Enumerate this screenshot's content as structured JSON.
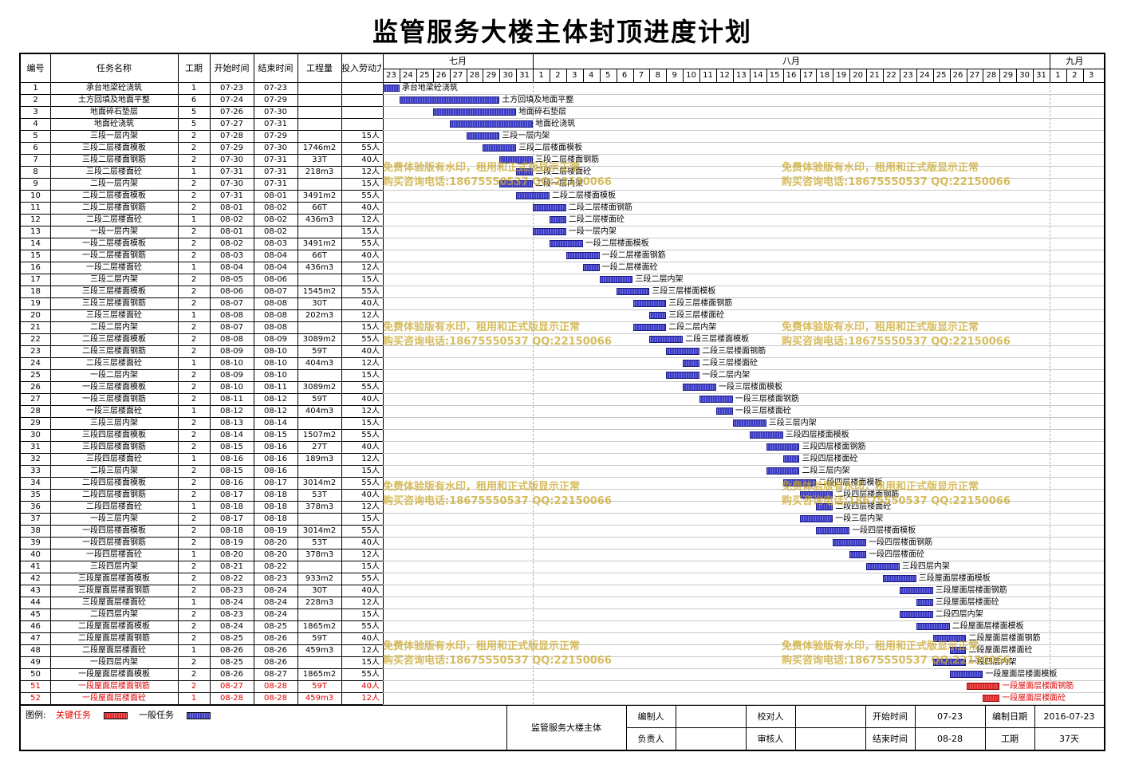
{
  "title": "监管服务大楼主体封顶进度计划",
  "headers": {
    "no": "编号",
    "name": "任务名称",
    "duration": "工期",
    "start": "开始时间",
    "end": "结束时间",
    "quantity": "工程量",
    "labor": "投入劳动力"
  },
  "months": [
    {
      "label": "七月",
      "days": [
        "23",
        "24",
        "25",
        "26",
        "27",
        "28",
        "29",
        "30",
        "31"
      ]
    },
    {
      "label": "八月",
      "days": [
        "1",
        "2",
        "3",
        "4",
        "5",
        "6",
        "7",
        "8",
        "9",
        "10",
        "11",
        "12",
        "13",
        "14",
        "15",
        "16",
        "17",
        "18",
        "19",
        "20",
        "21",
        "22",
        "23",
        "24",
        "25",
        "26",
        "27",
        "28",
        "29",
        "30",
        "31"
      ]
    },
    {
      "label": "九月",
      "days": [
        "1",
        "2",
        "3"
      ]
    }
  ],
  "tasks": [
    {
      "no": "1",
      "name": "承台地梁砼浇筑",
      "dur": "1",
      "start": "07-23",
      "end": "07-23",
      "qty": "",
      "labor": "",
      "critical": false
    },
    {
      "no": "2",
      "name": "土方回填及地面平整",
      "dur": "6",
      "start": "07-24",
      "end": "07-29",
      "qty": "",
      "labor": "",
      "critical": false
    },
    {
      "no": "3",
      "name": "地面碎石垫层",
      "dur": "5",
      "start": "07-26",
      "end": "07-30",
      "qty": "",
      "labor": "",
      "critical": false
    },
    {
      "no": "4",
      "name": "地面砼浇筑",
      "dur": "5",
      "start": "07-27",
      "end": "07-31",
      "qty": "",
      "labor": "",
      "critical": false
    },
    {
      "no": "5",
      "name": "三段一层内架",
      "dur": "2",
      "start": "07-28",
      "end": "07-29",
      "qty": "",
      "labor": "15人",
      "critical": false
    },
    {
      "no": "6",
      "name": "三段二层楼面模板",
      "dur": "2",
      "start": "07-29",
      "end": "07-30",
      "qty": "1746m2",
      "labor": "55人",
      "critical": false
    },
    {
      "no": "7",
      "name": "三段二层楼面钢筋",
      "dur": "2",
      "start": "07-30",
      "end": "07-31",
      "qty": "33T",
      "labor": "40人",
      "critical": false
    },
    {
      "no": "8",
      "name": "三段二层楼面砼",
      "dur": "1",
      "start": "07-31",
      "end": "07-31",
      "qty": "218m3",
      "labor": "12人",
      "critical": false
    },
    {
      "no": "9",
      "name": "二段一层内架",
      "dur": "2",
      "start": "07-30",
      "end": "07-31",
      "qty": "",
      "labor": "15人",
      "critical": false
    },
    {
      "no": "10",
      "name": "二段二层楼面模板",
      "dur": "2",
      "start": "07-31",
      "end": "08-01",
      "qty": "3491m2",
      "labor": "55人",
      "critical": false
    },
    {
      "no": "11",
      "name": "二段二层楼面钢筋",
      "dur": "2",
      "start": "08-01",
      "end": "08-02",
      "qty": "66T",
      "labor": "40人",
      "critical": false
    },
    {
      "no": "12",
      "name": "二段二层楼面砼",
      "dur": "1",
      "start": "08-02",
      "end": "08-02",
      "qty": "436m3",
      "labor": "12人",
      "critical": false
    },
    {
      "no": "13",
      "name": "一段一层内架",
      "dur": "2",
      "start": "08-01",
      "end": "08-02",
      "qty": "",
      "labor": "15人",
      "critical": false
    },
    {
      "no": "14",
      "name": "一段二层楼面模板",
      "dur": "2",
      "start": "08-02",
      "end": "08-03",
      "qty": "3491m2",
      "labor": "55人",
      "critical": false
    },
    {
      "no": "15",
      "name": "一段二层楼面钢筋",
      "dur": "2",
      "start": "08-03",
      "end": "08-04",
      "qty": "66T",
      "labor": "40人",
      "critical": false
    },
    {
      "no": "16",
      "name": "一段二层楼面砼",
      "dur": "1",
      "start": "08-04",
      "end": "08-04",
      "qty": "436m3",
      "labor": "12人",
      "critical": false
    },
    {
      "no": "17",
      "name": "三段二层内架",
      "dur": "2",
      "start": "08-05",
      "end": "08-06",
      "qty": "",
      "labor": "15人",
      "critical": false
    },
    {
      "no": "18",
      "name": "三段三层楼面模板",
      "dur": "2",
      "start": "08-06",
      "end": "08-07",
      "qty": "1545m2",
      "labor": "55人",
      "critical": false
    },
    {
      "no": "19",
      "name": "三段三层楼面钢筋",
      "dur": "2",
      "start": "08-07",
      "end": "08-08",
      "qty": "30T",
      "labor": "40人",
      "critical": false
    },
    {
      "no": "20",
      "name": "三段三层楼面砼",
      "dur": "1",
      "start": "08-08",
      "end": "08-08",
      "qty": "202m3",
      "labor": "12人",
      "critical": false
    },
    {
      "no": "21",
      "name": "二段二层内架",
      "dur": "2",
      "start": "08-07",
      "end": "08-08",
      "qty": "",
      "labor": "15人",
      "critical": false
    },
    {
      "no": "22",
      "name": "二段三层楼面模板",
      "dur": "2",
      "start": "08-08",
      "end": "08-09",
      "qty": "3089m2",
      "labor": "55人",
      "critical": false
    },
    {
      "no": "23",
      "name": "二段三层楼面钢筋",
      "dur": "2",
      "start": "08-09",
      "end": "08-10",
      "qty": "59T",
      "labor": "40人",
      "critical": false
    },
    {
      "no": "24",
      "name": "二段三层楼面砼",
      "dur": "1",
      "start": "08-10",
      "end": "08-10",
      "qty": "404m3",
      "labor": "12人",
      "critical": false
    },
    {
      "no": "25",
      "name": "一段二层内架",
      "dur": "2",
      "start": "08-09",
      "end": "08-10",
      "qty": "",
      "labor": "15人",
      "critical": false
    },
    {
      "no": "26",
      "name": "一段三层楼面模板",
      "dur": "2",
      "start": "08-10",
      "end": "08-11",
      "qty": "3089m2",
      "labor": "55人",
      "critical": false
    },
    {
      "no": "27",
      "name": "一段三层楼面钢筋",
      "dur": "2",
      "start": "08-11",
      "end": "08-12",
      "qty": "59T",
      "labor": "40人",
      "critical": false
    },
    {
      "no": "28",
      "name": "一段三层楼面砼",
      "dur": "1",
      "start": "08-12",
      "end": "08-12",
      "qty": "404m3",
      "labor": "12人",
      "critical": false
    },
    {
      "no": "29",
      "name": "三段三层内架",
      "dur": "2",
      "start": "08-13",
      "end": "08-14",
      "qty": "",
      "labor": "15人",
      "critical": false
    },
    {
      "no": "30",
      "name": "三段四层楼面模板",
      "dur": "2",
      "start": "08-14",
      "end": "08-15",
      "qty": "1507m2",
      "labor": "55人",
      "critical": false
    },
    {
      "no": "31",
      "name": "三段四层楼面钢筋",
      "dur": "2",
      "start": "08-15",
      "end": "08-16",
      "qty": "27T",
      "labor": "40人",
      "critical": false
    },
    {
      "no": "32",
      "name": "三段四层楼面砼",
      "dur": "1",
      "start": "08-16",
      "end": "08-16",
      "qty": "189m3",
      "labor": "12人",
      "critical": false
    },
    {
      "no": "33",
      "name": "二段三层内架",
      "dur": "2",
      "start": "08-15",
      "end": "08-16",
      "qty": "",
      "labor": "15人",
      "critical": false
    },
    {
      "no": "34",
      "name": "二段四层楼面模板",
      "dur": "2",
      "start": "08-16",
      "end": "08-17",
      "qty": "3014m2",
      "labor": "55人",
      "critical": false
    },
    {
      "no": "35",
      "name": "二段四层楼面钢筋",
      "dur": "2",
      "start": "08-17",
      "end": "08-18",
      "qty": "53T",
      "labor": "40人",
      "critical": false
    },
    {
      "no": "36",
      "name": "二段四层楼面砼",
      "dur": "1",
      "start": "08-18",
      "end": "08-18",
      "qty": "378m3",
      "labor": "12人",
      "critical": false
    },
    {
      "no": "37",
      "name": "一段三层内架",
      "dur": "2",
      "start": "08-17",
      "end": "08-18",
      "qty": "",
      "labor": "15人",
      "critical": false
    },
    {
      "no": "38",
      "name": "一段四层楼面模板",
      "dur": "2",
      "start": "08-18",
      "end": "08-19",
      "qty": "3014m2",
      "labor": "55人",
      "critical": false
    },
    {
      "no": "39",
      "name": "一段四层楼面钢筋",
      "dur": "2",
      "start": "08-19",
      "end": "08-20",
      "qty": "53T",
      "labor": "40人",
      "critical": false
    },
    {
      "no": "40",
      "name": "一段四层楼面砼",
      "dur": "1",
      "start": "08-20",
      "end": "08-20",
      "qty": "378m3",
      "labor": "12人",
      "critical": false
    },
    {
      "no": "41",
      "name": "三段四层内架",
      "dur": "2",
      "start": "08-21",
      "end": "08-22",
      "qty": "",
      "labor": "15人",
      "critical": false
    },
    {
      "no": "42",
      "name": "三段屋面层楼面模板",
      "dur": "2",
      "start": "08-22",
      "end": "08-23",
      "qty": "933m2",
      "labor": "55人",
      "critical": false
    },
    {
      "no": "43",
      "name": "三段屋面层楼面钢筋",
      "dur": "2",
      "start": "08-23",
      "end": "08-24",
      "qty": "30T",
      "labor": "40人",
      "critical": false
    },
    {
      "no": "44",
      "name": "三段屋面层楼面砼",
      "dur": "1",
      "start": "08-24",
      "end": "08-24",
      "qty": "228m3",
      "labor": "12人",
      "critical": false
    },
    {
      "no": "45",
      "name": "二段四层内架",
      "dur": "2",
      "start": "08-23",
      "end": "08-24",
      "qty": "",
      "labor": "15人",
      "critical": false
    },
    {
      "no": "46",
      "name": "二段屋面层楼面模板",
      "dur": "2",
      "start": "08-24",
      "end": "08-25",
      "qty": "1865m2",
      "labor": "55人",
      "critical": false
    },
    {
      "no": "47",
      "name": "二段屋面层楼面钢筋",
      "dur": "2",
      "start": "08-25",
      "end": "08-26",
      "qty": "59T",
      "labor": "40人",
      "critical": false
    },
    {
      "no": "48",
      "name": "二段屋面层楼面砼",
      "dur": "1",
      "start": "08-26",
      "end": "08-26",
      "qty": "459m3",
      "labor": "12人",
      "critical": false
    },
    {
      "no": "49",
      "name": "一段四层内架",
      "dur": "2",
      "start": "08-25",
      "end": "08-26",
      "qty": "",
      "labor": "15人",
      "critical": false
    },
    {
      "no": "50",
      "name": "一段屋面层楼面模板",
      "dur": "2",
      "start": "08-26",
      "end": "08-27",
      "qty": "1865m2",
      "labor": "55人",
      "critical": false
    },
    {
      "no": "51",
      "name": "一段屋面层楼面钢筋",
      "dur": "2",
      "start": "08-27",
      "end": "08-28",
      "qty": "59T",
      "labor": "40人",
      "critical": true
    },
    {
      "no": "52",
      "name": "一段屋面层楼面砼",
      "dur": "1",
      "start": "08-28",
      "end": "08-28",
      "qty": "459m3",
      "labor": "12人",
      "critical": true
    }
  ],
  "watermark": {
    "line1": "免费体验版有水印，租用和正式版显示正常",
    "line2": "购买咨询电话:18675550537 QQ:22150066"
  },
  "footer": {
    "legend_label": "图例:",
    "critical_label": "关键任务",
    "normal_label": "一般任务",
    "project_name": "监管服务大楼主体",
    "editor_label": "编制人",
    "editor_value": "",
    "reviewer_label": "校对人",
    "reviewer_value": "",
    "start_label": "开始时间",
    "start_value": "07-23",
    "date_label": "编制日期",
    "date_value": "2016-07-23",
    "owner_label": "负责人",
    "owner_value": "",
    "auditor_label": "审核人",
    "auditor_value": "",
    "end_label": "结束时间",
    "end_value": "08-28",
    "duration_label": "工期",
    "duration_value": "37天"
  },
  "colors": {
    "critical_bar": "#e02a2a",
    "normal_bar": "#3c3cc8",
    "critical_text": "#e00000"
  }
}
